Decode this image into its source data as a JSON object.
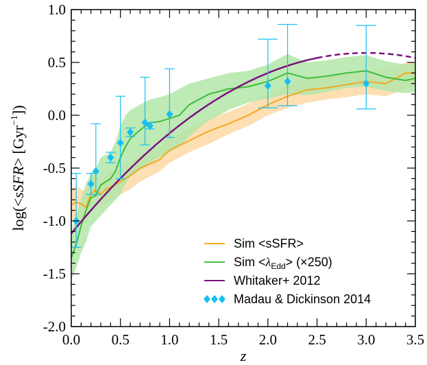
{
  "chart_data": {
    "type": "line",
    "title": "",
    "xlabel": "z",
    "ylabel_parts": {
      "pre": "log(<",
      "var": "sSFR",
      "post": "> [Gyr",
      "sup": "−1",
      "close": "])"
    },
    "xlim": [
      0.0,
      3.5
    ],
    "ylim": [
      -2.0,
      1.0
    ],
    "x_ticks": [
      0.0,
      0.5,
      1.0,
      1.5,
      2.0,
      2.5,
      3.0,
      3.5
    ],
    "x_tick_labels": [
      "0.0",
      "0.5",
      "1.0",
      "1.5",
      "2.0",
      "2.5",
      "3.0",
      "3.5"
    ],
    "y_ticks": [
      1.0,
      0.5,
      0.0,
      -0.5,
      -1.0,
      -1.5,
      -2.0
    ],
    "y_tick_labels": [
      "1.0",
      "0.5",
      "0.0",
      "-0.5",
      "-1.0",
      "-1.5",
      "-2.0"
    ],
    "colors": {
      "sim_ssfr": "#f5a81e",
      "sim_ssfr_band": "#fdd9a6",
      "sim_edd": "#3ebd3c",
      "sim_edd_band": "#b3e6a9",
      "whitaker": "#7a127e",
      "madau": "#17bff0"
    },
    "legend": {
      "position": "bottom-right",
      "entries": [
        {
          "key": "sim_ssfr",
          "label": "Sim <sSFR>"
        },
        {
          "key": "sim_edd",
          "label_parts": {
            "pre": "Sim <",
            "lam": "λ",
            "sub": "Edd",
            "post": "> (×250)"
          }
        },
        {
          "key": "whitaker",
          "label": "Whitaker+ 2012"
        },
        {
          "key": "madau",
          "label": "Madau & Dickinson 2014"
        }
      ]
    },
    "series": [
      {
        "key": "sim_ssfr",
        "name": "Sim <sSFR>",
        "x": [
          0.0,
          0.05,
          0.1,
          0.15,
          0.2,
          0.25,
          0.3,
          0.35,
          0.4,
          0.5,
          0.6,
          0.7,
          0.8,
          0.9,
          1.0,
          1.2,
          1.4,
          1.6,
          1.8,
          2.0,
          2.2,
          2.4,
          2.6,
          2.8,
          3.0,
          3.2,
          3.4,
          3.5
        ],
        "y": [
          -0.85,
          -0.82,
          -0.84,
          -0.87,
          -0.74,
          -0.71,
          -0.75,
          -0.7,
          -0.68,
          -0.63,
          -0.57,
          -0.5,
          -0.46,
          -0.42,
          -0.33,
          -0.24,
          -0.15,
          -0.08,
          0.0,
          0.1,
          0.18,
          0.24,
          0.26,
          0.29,
          0.32,
          0.3,
          0.4,
          0.4
        ],
        "band_low": [
          -1.0,
          -0.97,
          -0.99,
          -1.02,
          -0.89,
          -0.86,
          -0.88,
          -0.84,
          -0.81,
          -0.75,
          -0.7,
          -0.63,
          -0.58,
          -0.53,
          -0.45,
          -0.35,
          -0.27,
          -0.18,
          -0.1,
          0.0,
          0.07,
          0.12,
          0.15,
          0.17,
          0.2,
          0.18,
          0.25,
          0.28
        ],
        "band_high": [
          -0.7,
          -0.67,
          -0.7,
          -0.72,
          -0.59,
          -0.57,
          -0.61,
          -0.56,
          -0.54,
          -0.5,
          -0.44,
          -0.37,
          -0.33,
          -0.29,
          -0.21,
          -0.12,
          -0.03,
          0.03,
          0.11,
          0.2,
          0.28,
          0.35,
          0.37,
          0.4,
          0.43,
          0.42,
          0.5,
          0.5
        ]
      },
      {
        "key": "sim_edd",
        "name": "Sim <λEdd> (×250)",
        "x": [
          0.0,
          0.05,
          0.1,
          0.15,
          0.2,
          0.25,
          0.3,
          0.4,
          0.45,
          0.5,
          0.55,
          0.6,
          0.7,
          0.8,
          0.9,
          1.0,
          1.1,
          1.2,
          1.4,
          1.6,
          1.8,
          2.0,
          2.2,
          2.4,
          2.6,
          2.8,
          3.0,
          3.2,
          3.4,
          3.5
        ],
        "y": [
          -1.35,
          -1.22,
          -1.05,
          -0.9,
          -0.78,
          -0.76,
          -0.66,
          -0.6,
          -0.53,
          -0.4,
          -0.3,
          -0.22,
          -0.14,
          -0.07,
          -0.06,
          -0.03,
          0.0,
          0.1,
          0.2,
          0.25,
          0.27,
          0.32,
          0.4,
          0.35,
          0.37,
          0.4,
          0.42,
          0.36,
          0.33,
          0.35
        ],
        "band_low": [
          -1.55,
          -1.45,
          -1.3,
          -1.2,
          -1.05,
          -1.0,
          -0.95,
          -0.85,
          -0.8,
          -0.75,
          -0.65,
          -0.58,
          -0.52,
          -0.45,
          -0.4,
          -0.35,
          -0.3,
          -0.2,
          -0.05,
          0.05,
          0.12,
          0.16,
          0.2,
          0.19,
          0.22,
          0.26,
          0.27,
          0.23,
          0.21,
          0.22
        ],
        "band_high": [
          -1.1,
          -0.95,
          -0.8,
          -0.65,
          -0.55,
          -0.5,
          -0.4,
          -0.35,
          -0.25,
          -0.1,
          0.0,
          0.05,
          0.1,
          0.15,
          0.17,
          0.2,
          0.25,
          0.3,
          0.35,
          0.4,
          0.42,
          0.48,
          0.58,
          0.5,
          0.52,
          0.55,
          0.57,
          0.51,
          0.48,
          0.49
        ]
      },
      {
        "key": "whitaker",
        "name": "Whitaker+ 2012",
        "model": "log_ssfr = -1.12 + 1.14*z - 0.19*z^2",
        "solid_range": [
          0.0,
          2.5
        ],
        "dashed_range": [
          2.5,
          3.5
        ]
      },
      {
        "key": "madau",
        "name": "Madau & Dickinson 2014",
        "points": [
          {
            "x": 0.05,
            "y": -1.0,
            "lo": -1.25,
            "hi": -0.55,
            "xerr": 0.05
          },
          {
            "x": 0.2,
            "y": -0.65,
            "lo": -0.75,
            "hi": -0.55,
            "xerr": 0.05
          },
          {
            "x": 0.25,
            "y": -0.53,
            "lo": -0.75,
            "hi": -0.08,
            "xerr": 0.05
          },
          {
            "x": 0.4,
            "y": -0.4,
            "lo": -0.45,
            "hi": -0.35,
            "xerr": 0.05
          },
          {
            "x": 0.5,
            "y": -0.26,
            "lo": -0.6,
            "hi": 0.18,
            "xerr": 0.05
          },
          {
            "x": 0.6,
            "y": -0.16,
            "lo": -0.2,
            "hi": -0.12,
            "xerr": 0.05
          },
          {
            "x": 0.75,
            "y": -0.07,
            "lo": -0.28,
            "hi": 0.36,
            "xerr": 0.05
          },
          {
            "x": 0.8,
            "y": -0.1,
            "lo": -0.13,
            "hi": -0.07,
            "xerr": 0.05
          },
          {
            "x": 1.0,
            "y": 0.01,
            "lo": -0.21,
            "hi": 0.44,
            "xerr": 0.05
          },
          {
            "x": 2.0,
            "y": 0.28,
            "lo": 0.07,
            "hi": 0.72,
            "xerr": 0.1
          },
          {
            "x": 2.2,
            "y": 0.32,
            "lo": 0.09,
            "hi": 0.86,
            "xerr": 0.1
          },
          {
            "x": 3.0,
            "y": 0.3,
            "lo": 0.06,
            "hi": 0.85,
            "xerr": 0.1
          }
        ]
      }
    ]
  }
}
